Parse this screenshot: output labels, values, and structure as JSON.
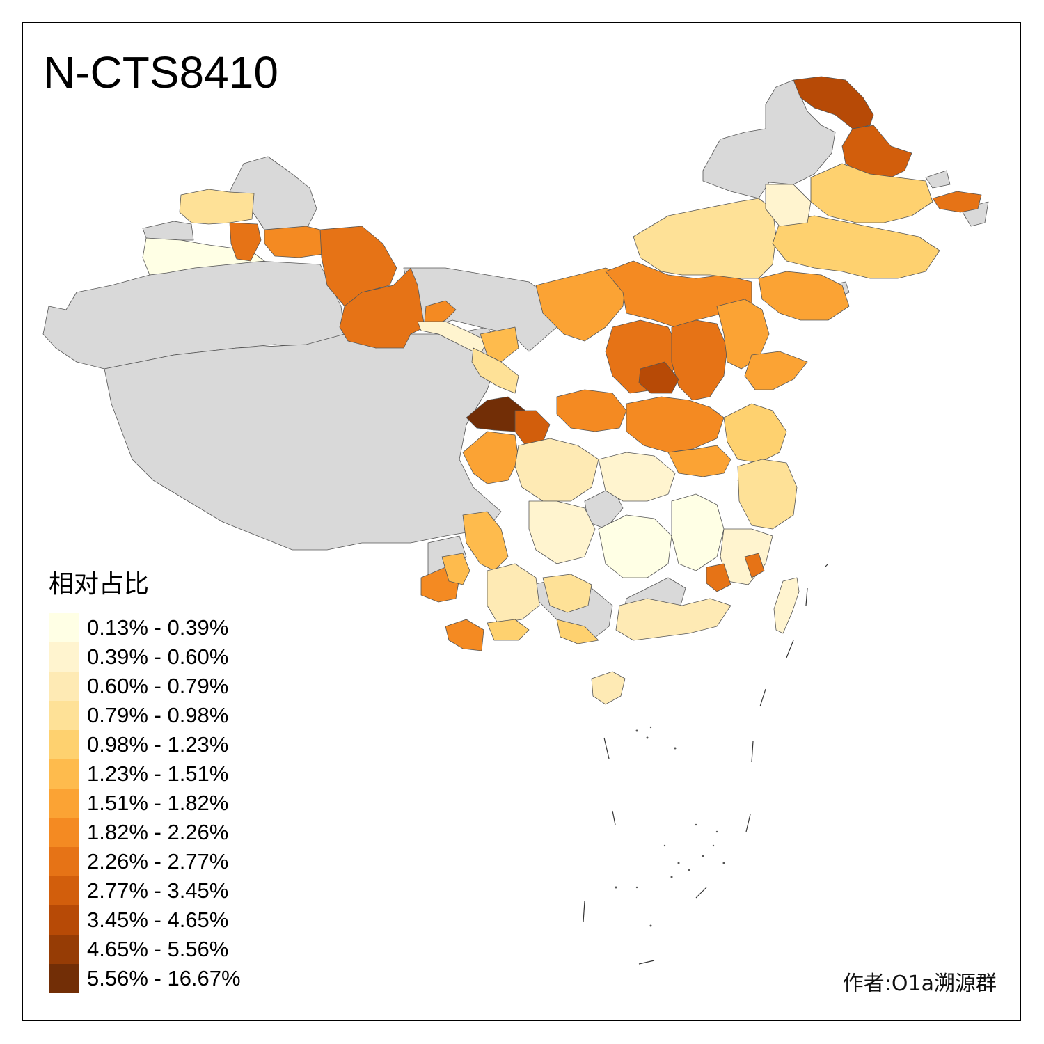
{
  "title": "N-CTS8410",
  "legend": {
    "title": "相对占比",
    "classes": [
      {
        "label": "0.13% - 0.39%",
        "color": "#ffffe5"
      },
      {
        "label": "0.39% - 0.60%",
        "color": "#fff4cf"
      },
      {
        "label": "0.60% - 0.79%",
        "color": "#feeab4"
      },
      {
        "label": "0.79% - 0.98%",
        "color": "#fee197"
      },
      {
        "label": "0.98% - 1.23%",
        "color": "#fed16f"
      },
      {
        "label": "1.23% - 1.51%",
        "color": "#febb4d"
      },
      {
        "label": "1.51% - 1.82%",
        "color": "#fba334"
      },
      {
        "label": "1.82% - 2.26%",
        "color": "#f48a22"
      },
      {
        "label": "2.26% - 2.77%",
        "color": "#e67316"
      },
      {
        "label": "2.77% - 3.45%",
        "color": "#d25e0c"
      },
      {
        "label": "3.45% - 4.65%",
        "color": "#b74a06"
      },
      {
        "label": "4.65% - 5.56%",
        "color": "#963c05"
      },
      {
        "label": "5.56% - 16.67%",
        "color": "#722e06"
      }
    ]
  },
  "no_data_color": "#d9d9d9",
  "credit": "作者:O1a溯源群"
}
